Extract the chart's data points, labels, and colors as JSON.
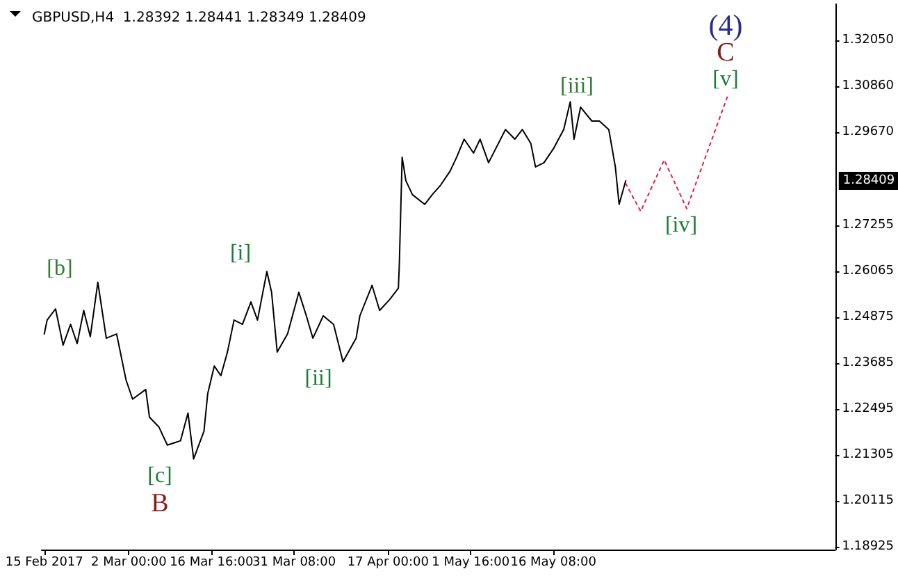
{
  "chart_data": {
    "type": "line",
    "title": "GBPUSD,H4  1.28392 1.28441 1.28349 1.28409",
    "series": [
      {
        "color": "#000000",
        "x": [
          "2017-02-15T00:00",
          "2017-02-15T12:00",
          "2017-02-17T00:00",
          "2017-02-18T08:00",
          "2017-02-19T16:00",
          "2017-02-20T20:00",
          "2017-02-22T00:00",
          "2017-02-23T04:00",
          "2017-02-24T12:00",
          "2017-02-26T00:00",
          "2017-02-27T20:00",
          "2017-03-01T12:00",
          "2017-03-02T16:00",
          "2017-03-05T00:00",
          "2017-03-05T16:00",
          "2017-03-07T08:00",
          "2017-03-08T20:00",
          "2017-03-11T04:00",
          "2017-03-12T12:00",
          "2017-03-13T12:00",
          "2017-03-15T08:00",
          "2017-03-16T00:00",
          "2017-03-17T04:00",
          "2017-03-18T08:00",
          "2017-03-19T12:00",
          "2017-03-20T16:00",
          "2017-03-22T04:00",
          "2017-03-23T16:00",
          "2017-03-24T20:00",
          "2017-03-26T12:00",
          "2017-03-27T08:00",
          "2017-03-28T08:00",
          "2017-03-30T04:00",
          "2017-04-01T04:00",
          "2017-04-02T12:00",
          "2017-04-03T16:00",
          "2017-04-05T12:00",
          "2017-04-07T08:00",
          "2017-04-09T00:00",
          "2017-04-11T08:00",
          "2017-04-12T00:00",
          "2017-04-14T04:00",
          "2017-04-15T12:00",
          "2017-04-17T08:00",
          "2017-04-18T20:00",
          "2017-04-19T00:00",
          "2017-04-19T12:00",
          "2017-04-20T04:00",
          "2017-04-21T08:00",
          "2017-04-23T12:00",
          "2017-04-24T20:00",
          "2017-04-26T08:00",
          "2017-04-28T00:00",
          "2017-04-29T04:00",
          "2017-04-30T12:00",
          "2017-05-02T04:00",
          "2017-05-03T08:00",
          "2017-05-04T20:00",
          "2017-05-07T20:00",
          "2017-05-09T12:00",
          "2017-05-10T20:00",
          "2017-05-12T08:00",
          "2017-05-13T04:00",
          "2017-05-14T16:00",
          "2017-05-16T08:00",
          "2017-05-18T04:00",
          "2017-05-19T08:00",
          "2017-05-20T00:00",
          "2017-05-21T04:00",
          "2017-05-23T04:00",
          "2017-05-24T12:00",
          "2017-05-26T04:00",
          "2017-05-27T08:00",
          "2017-05-28T00:00",
          "2017-05-29T04:00"
        ],
        "values": [
          1.2444,
          1.248,
          1.2509,
          1.2415,
          1.2469,
          1.2419,
          1.2505,
          1.2437,
          1.2578,
          1.2433,
          1.2444,
          1.2325,
          1.2275,
          1.23,
          1.2228,
          1.2203,
          1.2156,
          1.2167,
          1.2239,
          1.212,
          1.2192,
          1.2289,
          1.2361,
          1.2336,
          1.2397,
          1.248,
          1.2469,
          1.2527,
          1.248,
          1.2606,
          1.2552,
          1.2397,
          1.2444,
          1.2552,
          1.2491,
          1.2433,
          1.2491,
          1.2469,
          1.2372,
          1.2433,
          1.2491,
          1.257,
          1.2505,
          1.2534,
          1.2563,
          1.2624,
          1.2902,
          1.2841,
          1.2805,
          1.278,
          1.2805,
          1.283,
          1.2866,
          1.2902,
          1.2949,
          1.2913,
          1.2949,
          1.2888,
          1.2974,
          1.2949,
          1.2974,
          1.2938,
          1.2877,
          1.2888,
          1.2924,
          1.2974,
          1.3046,
          1.2949,
          1.3032,
          1.2996,
          1.2996,
          1.2974,
          1.2877,
          1.278,
          1.2841
        ]
      },
      {
        "color": "#e8174a",
        "line_style": "dotted",
        "x": [
          "2017-05-29T04:00",
          "2017-05-31T20:00",
          "2017-06-05T00:00",
          "2017-06-09T00:00",
          "2017-06-16T08:00"
        ],
        "values": [
          1.2834,
          1.2762,
          1.2895,
          1.2769,
          1.3064
        ]
      }
    ],
    "xlim": [
      "2017-02-14T13:00",
      "2017-07-05T08:00"
    ],
    "xticks": [
      {
        "value": "2017-02-15T00:00",
        "label": "15 Feb 2017"
      },
      {
        "value": "2017-03-02T00:00",
        "label": "2 Mar 00:00"
      },
      {
        "value": "2017-03-16T16:00",
        "label": "16 Mar 16:00"
      },
      {
        "value": "2017-03-31T08:00",
        "label": "31 Mar 08:00"
      },
      {
        "value": "2017-04-17T00:00",
        "label": "17 Apr 00:00"
      },
      {
        "value": "2017-05-01T16:00",
        "label": "1 May 16:00"
      },
      {
        "value": "2017-05-16T08:00",
        "label": "16 May 08:00"
      }
    ],
    "ylim": [
      1.1885,
      1.3299
    ],
    "yticks": [
      {
        "value": 1.18925,
        "label": "1.18925"
      },
      {
        "value": 1.20115,
        "label": "1.20115"
      },
      {
        "value": 1.21305,
        "label": "1.21305"
      },
      {
        "value": 1.22495,
        "label": "1.22495"
      },
      {
        "value": 1.23685,
        "label": "1.23685"
      },
      {
        "value": 1.24875,
        "label": "1.24875"
      },
      {
        "value": 1.26065,
        "label": "1.26065"
      },
      {
        "value": 1.27255,
        "label": "1.27255"
      },
      {
        "value": 1.2967,
        "label": "1.29670"
      },
      {
        "value": 1.3086,
        "label": "1.30860"
      },
      {
        "value": 1.3205,
        "label": "1.32050"
      }
    ],
    "annotations": [
      "[b]",
      "[c]",
      "B",
      "[i]",
      "[ii]",
      "[iii]",
      "[iv]",
      "[v]",
      "C",
      "(4)",
      "1.28409"
    ],
    "marker": "none",
    "grid": false
  }
}
